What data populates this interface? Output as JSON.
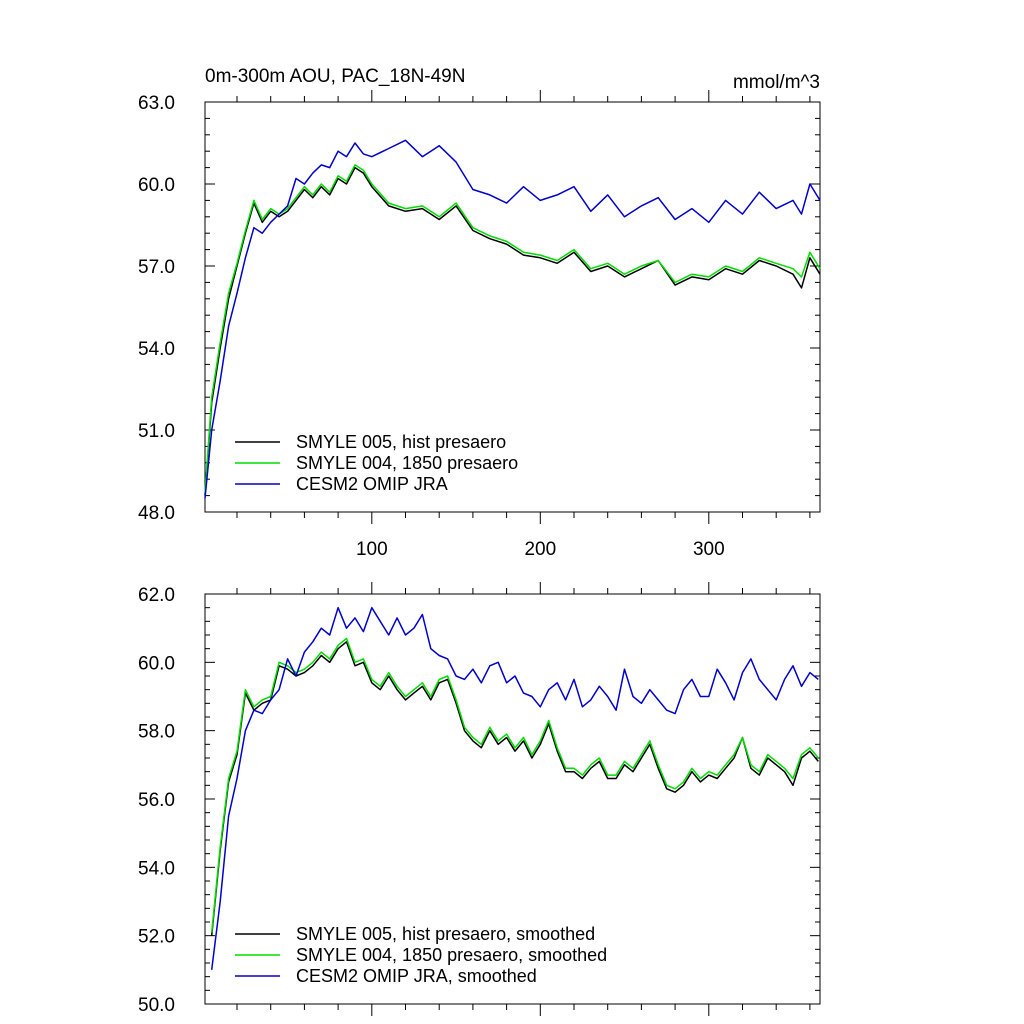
{
  "chart_data": [
    {
      "type": "line",
      "title_left": "0m-300m AOU, PAC_18N-49N",
      "title_right": "mmol/m^3",
      "xlim": [
        1,
        366
      ],
      "ylim": [
        48.0,
        63.0
      ],
      "yticks": [
        48.0,
        51.0,
        54.0,
        57.0,
        60.0,
        63.0
      ],
      "ytick_labels": [
        "48.0",
        "51.0",
        "54.0",
        "57.0",
        "60.0",
        "63.0"
      ],
      "xticks": [
        100,
        200,
        300
      ],
      "xtick_labels": [
        "100",
        "200",
        "300"
      ],
      "legend_position": "bottom-left",
      "series": [
        {
          "name": "SMYLE 005, hist presaero",
          "color": "#000000",
          "x": [
            1,
            5,
            10,
            15,
            20,
            25,
            30,
            35,
            40,
            45,
            50,
            55,
            60,
            65,
            70,
            75,
            80,
            85,
            90,
            95,
            100,
            110,
            120,
            130,
            140,
            150,
            160,
            170,
            180,
            190,
            200,
            210,
            220,
            230,
            240,
            250,
            260,
            270,
            280,
            290,
            300,
            310,
            320,
            330,
            340,
            350,
            355,
            360,
            366
          ],
          "y": [
            48.6,
            52.0,
            54.0,
            55.8,
            57.0,
            58.2,
            59.3,
            58.6,
            59.0,
            58.8,
            59.0,
            59.4,
            59.8,
            59.5,
            59.9,
            59.6,
            60.2,
            60.0,
            60.6,
            60.4,
            59.9,
            59.2,
            59.0,
            59.1,
            58.7,
            59.2,
            58.3,
            58.0,
            57.8,
            57.4,
            57.3,
            57.1,
            57.5,
            56.8,
            57.0,
            56.6,
            56.9,
            57.2,
            56.3,
            56.6,
            56.5,
            56.9,
            56.7,
            57.2,
            57.0,
            56.7,
            56.2,
            57.3,
            56.7
          ]
        },
        {
          "name": "SMYLE 004, 1850 presaero",
          "color": "#00dd00",
          "x": [
            1,
            5,
            10,
            15,
            20,
            25,
            30,
            35,
            40,
            45,
            50,
            55,
            60,
            65,
            70,
            75,
            80,
            85,
            90,
            95,
            100,
            110,
            120,
            130,
            140,
            150,
            160,
            170,
            180,
            190,
            200,
            210,
            220,
            230,
            240,
            250,
            260,
            270,
            280,
            290,
            300,
            310,
            320,
            330,
            340,
            350,
            355,
            360,
            366
          ],
          "y": [
            48.7,
            52.2,
            54.2,
            56.0,
            57.1,
            58.3,
            59.4,
            58.7,
            59.1,
            58.9,
            59.1,
            59.5,
            59.9,
            59.6,
            60.0,
            59.7,
            60.3,
            60.1,
            60.7,
            60.5,
            60.0,
            59.3,
            59.1,
            59.2,
            58.8,
            59.3,
            58.4,
            58.1,
            57.9,
            57.5,
            57.4,
            57.2,
            57.6,
            56.9,
            57.1,
            56.7,
            57.0,
            57.2,
            56.4,
            56.7,
            56.6,
            57.0,
            56.8,
            57.3,
            57.1,
            56.9,
            56.6,
            57.5,
            56.9
          ]
        },
        {
          "name": "CESM2 OMIP JRA",
          "color": "#0000cc",
          "x": [
            1,
            5,
            10,
            15,
            20,
            25,
            30,
            35,
            40,
            45,
            50,
            55,
            60,
            65,
            70,
            75,
            80,
            85,
            90,
            95,
            100,
            110,
            120,
            130,
            140,
            150,
            160,
            170,
            180,
            190,
            200,
            210,
            220,
            230,
            240,
            250,
            260,
            270,
            280,
            290,
            300,
            310,
            320,
            330,
            340,
            350,
            355,
            360,
            366
          ],
          "y": [
            48.5,
            51.0,
            52.8,
            54.8,
            56.0,
            57.3,
            58.4,
            58.2,
            58.6,
            58.9,
            59.2,
            60.2,
            60.0,
            60.4,
            60.7,
            60.6,
            61.2,
            61.0,
            61.5,
            61.1,
            61.0,
            61.3,
            61.6,
            61.0,
            61.4,
            60.8,
            59.8,
            59.6,
            59.3,
            59.9,
            59.4,
            59.6,
            59.9,
            59.0,
            59.6,
            58.8,
            59.2,
            59.5,
            58.7,
            59.1,
            58.6,
            59.4,
            58.9,
            59.7,
            59.1,
            59.4,
            58.9,
            60.0,
            59.4
          ]
        }
      ]
    },
    {
      "type": "line",
      "xlim": [
        1,
        366
      ],
      "ylim": [
        50.0,
        62.0
      ],
      "yticks": [
        50.0,
        52.0,
        54.0,
        56.0,
        58.0,
        60.0,
        62.0
      ],
      "ytick_labels": [
        "50.0",
        "52.0",
        "54.0",
        "56.0",
        "58.0",
        "60.0",
        "62.0"
      ],
      "xticks": [
        100,
        200,
        300
      ],
      "legend_position": "bottom-left",
      "series": [
        {
          "name": "SMYLE 005, hist presaero, smoothed",
          "color": "#000000",
          "x": [
            5,
            10,
            15,
            20,
            25,
            30,
            35,
            40,
            45,
            50,
            55,
            60,
            65,
            70,
            75,
            80,
            85,
            90,
            95,
            100,
            105,
            110,
            115,
            120,
            125,
            130,
            135,
            140,
            145,
            150,
            155,
            160,
            165,
            170,
            175,
            180,
            185,
            190,
            195,
            200,
            205,
            210,
            215,
            220,
            225,
            230,
            235,
            240,
            245,
            250,
            255,
            260,
            265,
            270,
            275,
            280,
            285,
            290,
            295,
            300,
            305,
            310,
            315,
            320,
            325,
            330,
            335,
            340,
            345,
            350,
            355,
            360,
            365
          ],
          "y": [
            52.0,
            54.5,
            56.5,
            57.3,
            59.1,
            58.6,
            58.8,
            58.9,
            59.9,
            59.8,
            59.6,
            59.7,
            59.9,
            60.2,
            60.0,
            60.4,
            60.6,
            59.9,
            60.0,
            59.4,
            59.2,
            59.6,
            59.2,
            58.9,
            59.1,
            59.3,
            58.9,
            59.4,
            59.5,
            58.8,
            58.0,
            57.7,
            57.5,
            58.0,
            57.6,
            57.8,
            57.4,
            57.7,
            57.2,
            57.6,
            58.2,
            57.4,
            56.8,
            56.8,
            56.6,
            56.9,
            57.1,
            56.6,
            56.6,
            57.0,
            56.8,
            57.2,
            57.6,
            56.9,
            56.3,
            56.2,
            56.4,
            56.8,
            56.5,
            56.7,
            56.6,
            56.9,
            57.2,
            57.8,
            56.9,
            56.7,
            57.2,
            57.0,
            56.8,
            56.4,
            57.2,
            57.4,
            57.1
          ]
        },
        {
          "name": "SMYLE 004, 1850 presaero, smoothed",
          "color": "#00dd00",
          "x": [
            5,
            10,
            15,
            20,
            25,
            30,
            35,
            40,
            45,
            50,
            55,
            60,
            65,
            70,
            75,
            80,
            85,
            90,
            95,
            100,
            105,
            110,
            115,
            120,
            125,
            130,
            135,
            140,
            145,
            150,
            155,
            160,
            165,
            170,
            175,
            180,
            185,
            190,
            195,
            200,
            205,
            210,
            215,
            220,
            225,
            230,
            235,
            240,
            245,
            250,
            255,
            260,
            265,
            270,
            275,
            280,
            285,
            290,
            295,
            300,
            305,
            310,
            315,
            320,
            325,
            330,
            335,
            340,
            345,
            350,
            355,
            360,
            365
          ],
          "y": [
            52.1,
            54.6,
            56.6,
            57.4,
            59.2,
            58.7,
            58.9,
            59.0,
            60.0,
            59.9,
            59.7,
            59.8,
            60.0,
            60.3,
            60.1,
            60.5,
            60.7,
            60.0,
            60.1,
            59.5,
            59.3,
            59.7,
            59.3,
            59.0,
            59.2,
            59.4,
            59.0,
            59.5,
            59.6,
            58.9,
            58.1,
            57.8,
            57.6,
            58.1,
            57.7,
            57.9,
            57.5,
            57.8,
            57.3,
            57.7,
            58.3,
            57.5,
            56.9,
            56.9,
            56.7,
            57.0,
            57.2,
            56.7,
            56.7,
            57.1,
            56.9,
            57.3,
            57.7,
            57.0,
            56.4,
            56.3,
            56.5,
            56.9,
            56.6,
            56.8,
            56.7,
            57.0,
            57.3,
            57.8,
            57.0,
            56.8,
            57.3,
            57.1,
            56.9,
            56.6,
            57.3,
            57.5,
            57.2
          ]
        },
        {
          "name": "CESM2 OMIP JRA, smoothed",
          "color": "#0000cc",
          "x": [
            5,
            10,
            15,
            20,
            25,
            30,
            35,
            40,
            45,
            50,
            55,
            60,
            65,
            70,
            75,
            80,
            85,
            90,
            95,
            100,
            105,
            110,
            115,
            120,
            125,
            130,
            135,
            140,
            145,
            150,
            155,
            160,
            165,
            170,
            175,
            180,
            185,
            190,
            195,
            200,
            205,
            210,
            215,
            220,
            225,
            230,
            235,
            240,
            245,
            250,
            255,
            260,
            265,
            270,
            275,
            280,
            285,
            290,
            295,
            300,
            305,
            310,
            315,
            320,
            325,
            330,
            335,
            340,
            345,
            350,
            355,
            360,
            365
          ],
          "y": [
            51.0,
            53.0,
            55.5,
            56.6,
            58.0,
            58.6,
            58.5,
            58.9,
            59.2,
            60.1,
            59.6,
            60.3,
            60.6,
            61.0,
            60.8,
            61.6,
            61.0,
            61.3,
            60.9,
            61.6,
            61.2,
            60.8,
            61.3,
            60.8,
            61.0,
            61.4,
            60.4,
            60.2,
            60.1,
            59.6,
            59.5,
            59.8,
            59.4,
            59.9,
            60.0,
            59.4,
            59.6,
            59.1,
            59.0,
            58.7,
            59.2,
            59.4,
            58.9,
            59.5,
            58.7,
            58.9,
            59.3,
            59.0,
            58.6,
            59.8,
            59.0,
            58.8,
            59.2,
            58.9,
            58.6,
            58.5,
            59.2,
            59.5,
            59.0,
            59.0,
            59.8,
            59.4,
            58.9,
            59.7,
            60.1,
            59.5,
            59.2,
            58.9,
            59.5,
            59.9,
            59.3,
            59.7,
            59.5
          ]
        }
      ]
    }
  ]
}
